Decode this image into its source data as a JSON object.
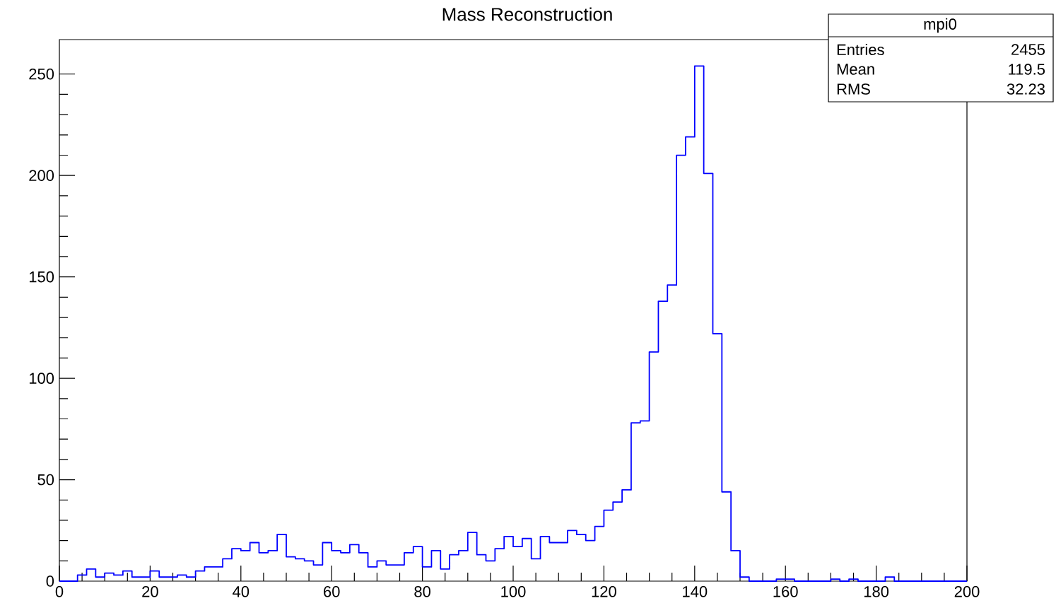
{
  "chart_data": {
    "type": "histogram",
    "title": "Mass Reconstruction",
    "bins": [
      0,
      2,
      4,
      6,
      8,
      10,
      12,
      14,
      16,
      18,
      20,
      22,
      24,
      26,
      28,
      30,
      32,
      34,
      36,
      38,
      40,
      42,
      44,
      46,
      48,
      50,
      52,
      54,
      56,
      58,
      60,
      62,
      64,
      66,
      68,
      70,
      72,
      74,
      76,
      78,
      80,
      82,
      84,
      86,
      88,
      90,
      92,
      94,
      96,
      98,
      100,
      102,
      104,
      106,
      108,
      110,
      112,
      114,
      116,
      118,
      120,
      122,
      124,
      126,
      128,
      130,
      132,
      134,
      136,
      138,
      140,
      142,
      144,
      146,
      148,
      150,
      152,
      154,
      156,
      158,
      160,
      162,
      164,
      166,
      168,
      170,
      172,
      174,
      176,
      178,
      180,
      182,
      184,
      186,
      188,
      190,
      192,
      194,
      196,
      198,
      200
    ],
    "values": [
      0,
      0,
      3,
      6,
      2,
      4,
      3,
      5,
      2,
      2,
      5,
      2,
      2,
      3,
      2,
      5,
      7,
      7,
      11,
      16,
      15,
      19,
      14,
      15,
      23,
      12,
      11,
      10,
      8,
      19,
      15,
      14,
      18,
      14,
      7,
      10,
      8,
      8,
      14,
      17,
      7,
      15,
      6,
      13,
      15,
      24,
      13,
      10,
      16,
      22,
      17,
      21,
      11,
      22,
      19,
      19,
      25,
      23,
      20,
      27,
      35,
      39,
      45,
      78,
      79,
      113,
      138,
      146,
      210,
      219,
      254,
      201,
      122,
      44,
      15,
      2,
      0,
      0,
      0,
      1,
      1,
      0,
      0,
      0,
      0,
      1,
      0,
      1,
      0,
      0,
      0,
      2,
      0,
      0,
      0,
      0,
      0,
      0,
      0,
      0
    ],
    "color": "#0000ff",
    "xlim": [
      0,
      200
    ],
    "ylim": [
      0,
      267
    ],
    "xticks": [
      0,
      20,
      40,
      60,
      80,
      100,
      120,
      140,
      160,
      180,
      200
    ],
    "yticks": [
      0,
      50,
      100,
      150,
      200,
      250
    ],
    "annotations": [
      "mpi0",
      "Entries",
      "2455",
      "Mean",
      "119.5",
      "RMS",
      "32.23"
    ]
  }
}
